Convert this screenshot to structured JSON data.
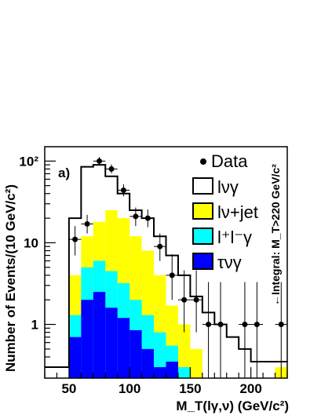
{
  "chart_data": {
    "type": "histogram",
    "panel_label": "a)",
    "xlabel": "M_T(lγ,ν) (GeV/c²)",
    "ylabel": "Number of Events/(10 GeV/c²)",
    "xlim": [
      30,
      230
    ],
    "ylim": [
      0.22,
      150
    ],
    "yscale": "log",
    "bin_edges": [
      30,
      40,
      50,
      60,
      70,
      80,
      90,
      100,
      110,
      120,
      130,
      140,
      150,
      160,
      170,
      180,
      190,
      200,
      210,
      220,
      230
    ],
    "x_ticks": [
      50,
      100,
      150,
      200
    ],
    "y_ticks": [
      {
        "value": 1,
        "label": "1"
      },
      {
        "value": 10,
        "label": "10"
      },
      {
        "value": 100,
        "label": "10²"
      }
    ],
    "annotation": "←Integral: M_T>220 GeV/c²",
    "series": [
      {
        "name": "lνγ",
        "style": "step",
        "color": "#000000",
        "values": [
          0.3,
          0.3,
          20,
          85,
          90,
          65,
          40,
          25,
          20,
          12,
          7,
          4,
          2.2,
          1.4,
          1.0,
          0.7,
          0.5,
          0.35,
          0.35,
          0.35
        ]
      },
      {
        "name": "lν+jet",
        "style": "fill",
        "color": "#ffff00",
        "values": [
          0,
          0,
          4,
          12,
          18,
          25,
          20,
          12,
          8,
          4,
          1.7,
          1.0,
          0.5,
          0,
          0,
          0,
          0,
          0,
          0,
          0.3
        ]
      },
      {
        "name": "l⁺l⁻γ",
        "style": "fill",
        "color": "#00ffff",
        "values": [
          0,
          0,
          1.3,
          5,
          6,
          4.5,
          3.2,
          2.0,
          1.3,
          0.8,
          0.55,
          0.3,
          0,
          0,
          0,
          0,
          0,
          0,
          0,
          0
        ]
      },
      {
        "name": "τνγ",
        "style": "fill",
        "color": "#0000ff",
        "values": [
          0,
          0,
          0.7,
          2.0,
          2.5,
          1.6,
          1.2,
          0.85,
          0.5,
          0.3,
          0.35,
          0,
          0,
          0,
          0,
          0,
          0,
          0,
          0,
          0
        ]
      }
    ],
    "data_points": {
      "name": "Data",
      "x": [
        55,
        65,
        75,
        85,
        95,
        105,
        115,
        125,
        135,
        145,
        155,
        165,
        175,
        195,
        205,
        225
      ],
      "y": [
        11,
        17,
        100,
        80,
        44,
        21,
        20,
        9,
        4,
        2,
        2,
        1,
        1,
        1,
        1,
        1
      ],
      "yerr_lo": [
        4,
        4,
        10,
        9,
        7,
        5,
        4.5,
        3,
        2,
        1.2,
        1.2,
        0.8,
        0.8,
        0.8,
        0.8,
        0.8
      ],
      "yerr_hi": [
        5,
        5,
        12,
        11,
        8,
        6,
        5.5,
        4,
        3.2,
        2.6,
        2.6,
        2.3,
        2.3,
        2.3,
        2.3,
        2.3
      ],
      "xerr": 5
    },
    "legend": [
      "Data",
      "lνγ",
      "lν+jet",
      "l⁺l⁻γ",
      "τνγ"
    ],
    "legend_position": "top-right",
    "grid": false
  }
}
